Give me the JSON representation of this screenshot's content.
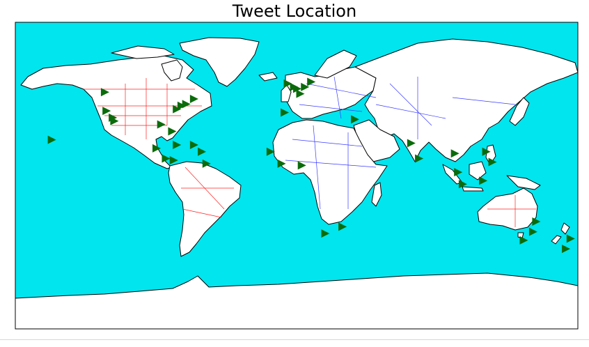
{
  "title": "Tweet Location",
  "colors": {
    "ocean": "#00e5ee",
    "land": "#ffffff",
    "coastline": "#000000",
    "country_borders_americas_oceania": "#ff2020",
    "country_borders_eurasia_africa": "#3a3aff",
    "marker": "#0b6b0b"
  },
  "chart_data": {
    "type": "scatter",
    "projection": "equirectangular",
    "xlim": [
      -180,
      180
    ],
    "ylim": [
      -90,
      90
    ],
    "grid": false,
    "marker_shape": "triangle-right",
    "points": [
      {
        "lon": -123,
        "lat": 49
      },
      {
        "lon": -122,
        "lat": 38
      },
      {
        "lon": -118,
        "lat": 34
      },
      {
        "lon": -117,
        "lat": 32
      },
      {
        "lon": -157,
        "lat": 21
      },
      {
        "lon": -80,
        "lat": 26
      },
      {
        "lon": -77,
        "lat": 39
      },
      {
        "lon": -74,
        "lat": 41
      },
      {
        "lon": -71,
        "lat": 42
      },
      {
        "lon": -66,
        "lat": 45
      },
      {
        "lon": -87,
        "lat": 30
      },
      {
        "lon": -90,
        "lat": 16
      },
      {
        "lon": -84,
        "lat": 10
      },
      {
        "lon": -79,
        "lat": 9
      },
      {
        "lon": -77,
        "lat": 18
      },
      {
        "lon": -66,
        "lat": 18
      },
      {
        "lon": -61,
        "lat": 14
      },
      {
        "lon": -58,
        "lat": 7
      },
      {
        "lon": -6,
        "lat": 54
      },
      {
        "lon": -2,
        "lat": 52
      },
      {
        "lon": 0,
        "lat": 51
      },
      {
        "lon": 9,
        "lat": 55
      },
      {
        "lon": 5,
        "lat": 52
      },
      {
        "lon": 2,
        "lat": 48
      },
      {
        "lon": -8,
        "lat": 37
      },
      {
        "lon": 37,
        "lat": 33
      },
      {
        "lon": -17,
        "lat": 14
      },
      {
        "lon": -10,
        "lat": 7
      },
      {
        "lon": 3,
        "lat": 6
      },
      {
        "lon": 18,
        "lat": -34
      },
      {
        "lon": 29,
        "lat": -30
      },
      {
        "lon": 73,
        "lat": 19
      },
      {
        "lon": 78,
        "lat": 10
      },
      {
        "lon": 101,
        "lat": 13
      },
      {
        "lon": 103,
        "lat": 2
      },
      {
        "lon": 106,
        "lat": -5
      },
      {
        "lon": 121,
        "lat": 14
      },
      {
        "lon": 125,
        "lat": 8
      },
      {
        "lon": 119,
        "lat": -3
      },
      {
        "lon": 151,
        "lat": -33
      },
      {
        "lon": 145,
        "lat": -38
      },
      {
        "lon": 153,
        "lat": -27
      },
      {
        "lon": 175,
        "lat": -37
      },
      {
        "lon": 172,
        "lat": -43
      }
    ]
  }
}
